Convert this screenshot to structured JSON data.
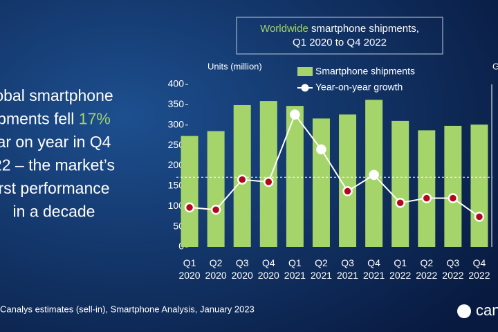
{
  "chart_data": {
    "type": "bar_line",
    "headline": [
      [
        "pments fell ",
        "17%"
      ]
    ],
    "headline_lines": [
      [
        "obal smartphone"
      ],
      [
        "pments fell ",
        "17%"
      ],
      [
        "ar on year in Q4"
      ],
      [
        "22 – the market’s"
      ],
      [
        "rst performance"
      ],
      [
        "in a decade"
      ]
    ],
    "title": [
      "Worldwide",
      " smartphone shipments,"
    ],
    "subtitle": "Q1 2020 to Q4 2022",
    "y_label": "Units (million)",
    "y2_label": "G",
    "categories": [
      "Q1 2020",
      "Q2 2020",
      "Q3 2020",
      "Q4 2020",
      "Q1 2021",
      "Q2 2021",
      "Q3 2021",
      "Q4 2021",
      "Q1 2022",
      "Q2 2022",
      "Q3 2022",
      "Q4 2022"
    ],
    "series": [
      {
        "name": "Smartphone shipments",
        "color": "#a5d46a",
        "values": [
          273,
          285,
          349,
          359,
          347,
          316,
          326,
          362,
          310,
          287,
          298,
          301
        ]
      },
      {
        "name": "Year-on-year growth",
        "color": "#ffffff",
        "axis": "y2",
        "negative_color": "#b3071b",
        "positive_color": "#ffffff",
        "values": [
          -13,
          -14,
          -1,
          -2,
          27,
          12,
          -6,
          1,
          -11,
          -9,
          -9,
          -17
        ]
      }
    ],
    "ylim": [
      0,
      400
    ],
    "yticks": [
      0,
      50,
      100,
      150,
      200,
      250,
      300,
      350,
      400
    ],
    "y2lim": [
      -30,
      40
    ],
    "zero_line": true,
    "source": "Canalys estimates (sell-in), Smartphone Analysis, January 2023",
    "logo": "cana"
  }
}
